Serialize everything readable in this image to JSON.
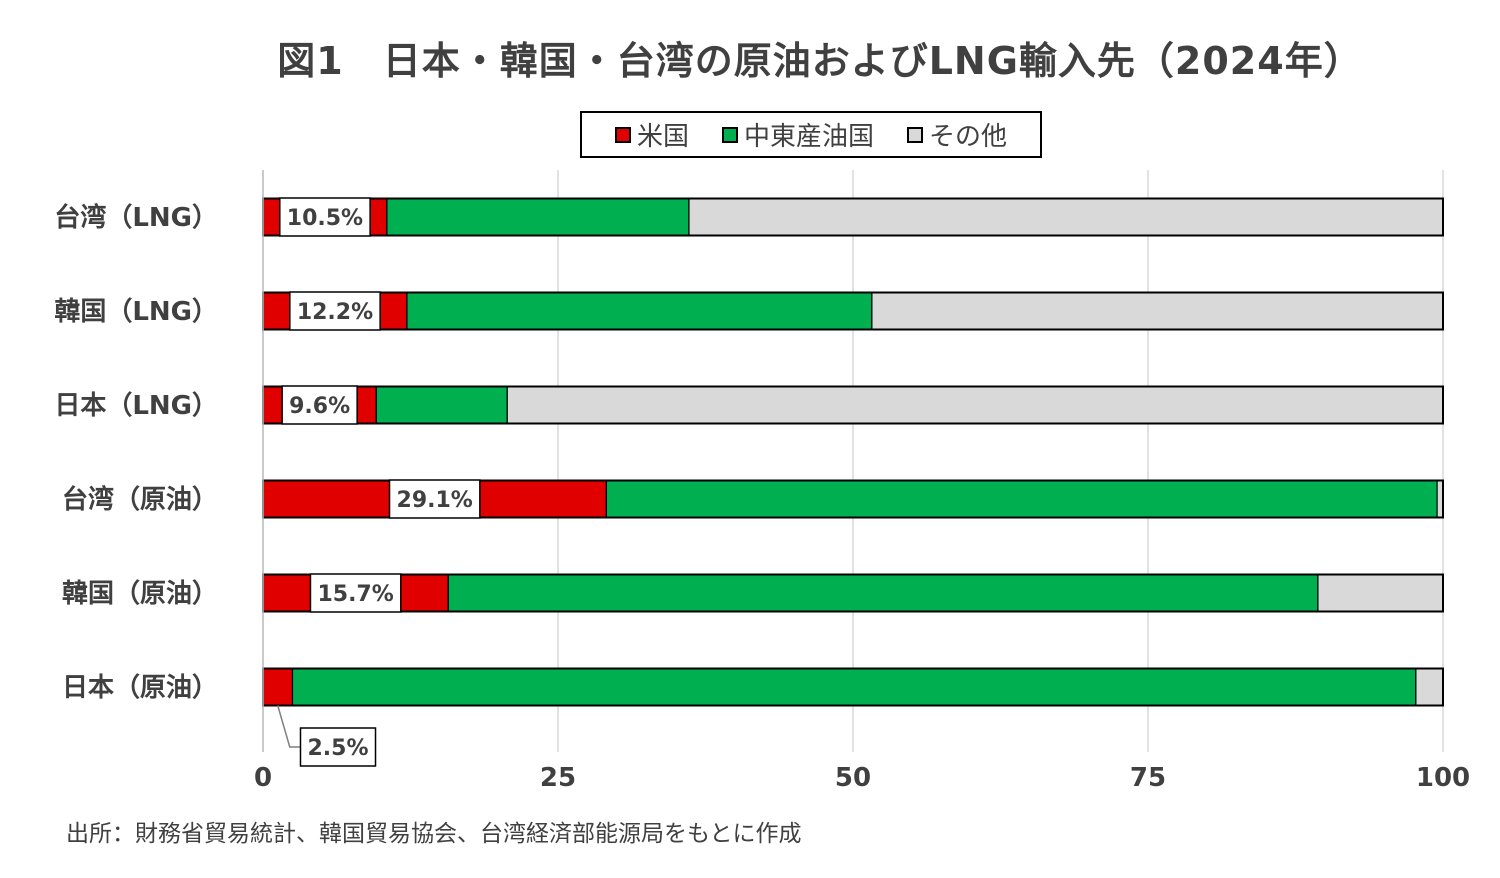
{
  "chart_data": {
    "type": "bar",
    "orientation": "horizontal",
    "stacked": true,
    "title": "図1　日本・韓国・台湾の原油およびLNG輸入先（2024年）",
    "categories": [
      "台湾（LNG）",
      "韓国（LNG）",
      "日本（LNG）",
      "台湾（原油）",
      "韓国（原油）",
      "日本（原油）"
    ],
    "series": [
      {
        "name": "米国",
        "color": "#e00000",
        "values": [
          10.5,
          12.2,
          9.6,
          29.1,
          15.7,
          2.5
        ]
      },
      {
        "name": "中東産油国",
        "color": "#00b050",
        "values": [
          25.6,
          39.4,
          11.1,
          70.4,
          73.7,
          95.2
        ]
      },
      {
        "name": "その他",
        "color": "#d9d9d9",
        "values": [
          63.9,
          48.4,
          79.3,
          0.5,
          10.6,
          2.3
        ]
      }
    ],
    "data_labels": [
      "10.5%",
      "12.2%",
      "9.6%",
      "29.1%",
      "15.7%",
      "2.5%"
    ],
    "xlim": [
      0,
      100
    ],
    "xticks": [
      0,
      25,
      50,
      75,
      100
    ],
    "grid": true,
    "legend_position": "top"
  },
  "source_note": "出所：財務省貿易統計、韓国貿易協会、台湾経済部能源局をもとに作成"
}
